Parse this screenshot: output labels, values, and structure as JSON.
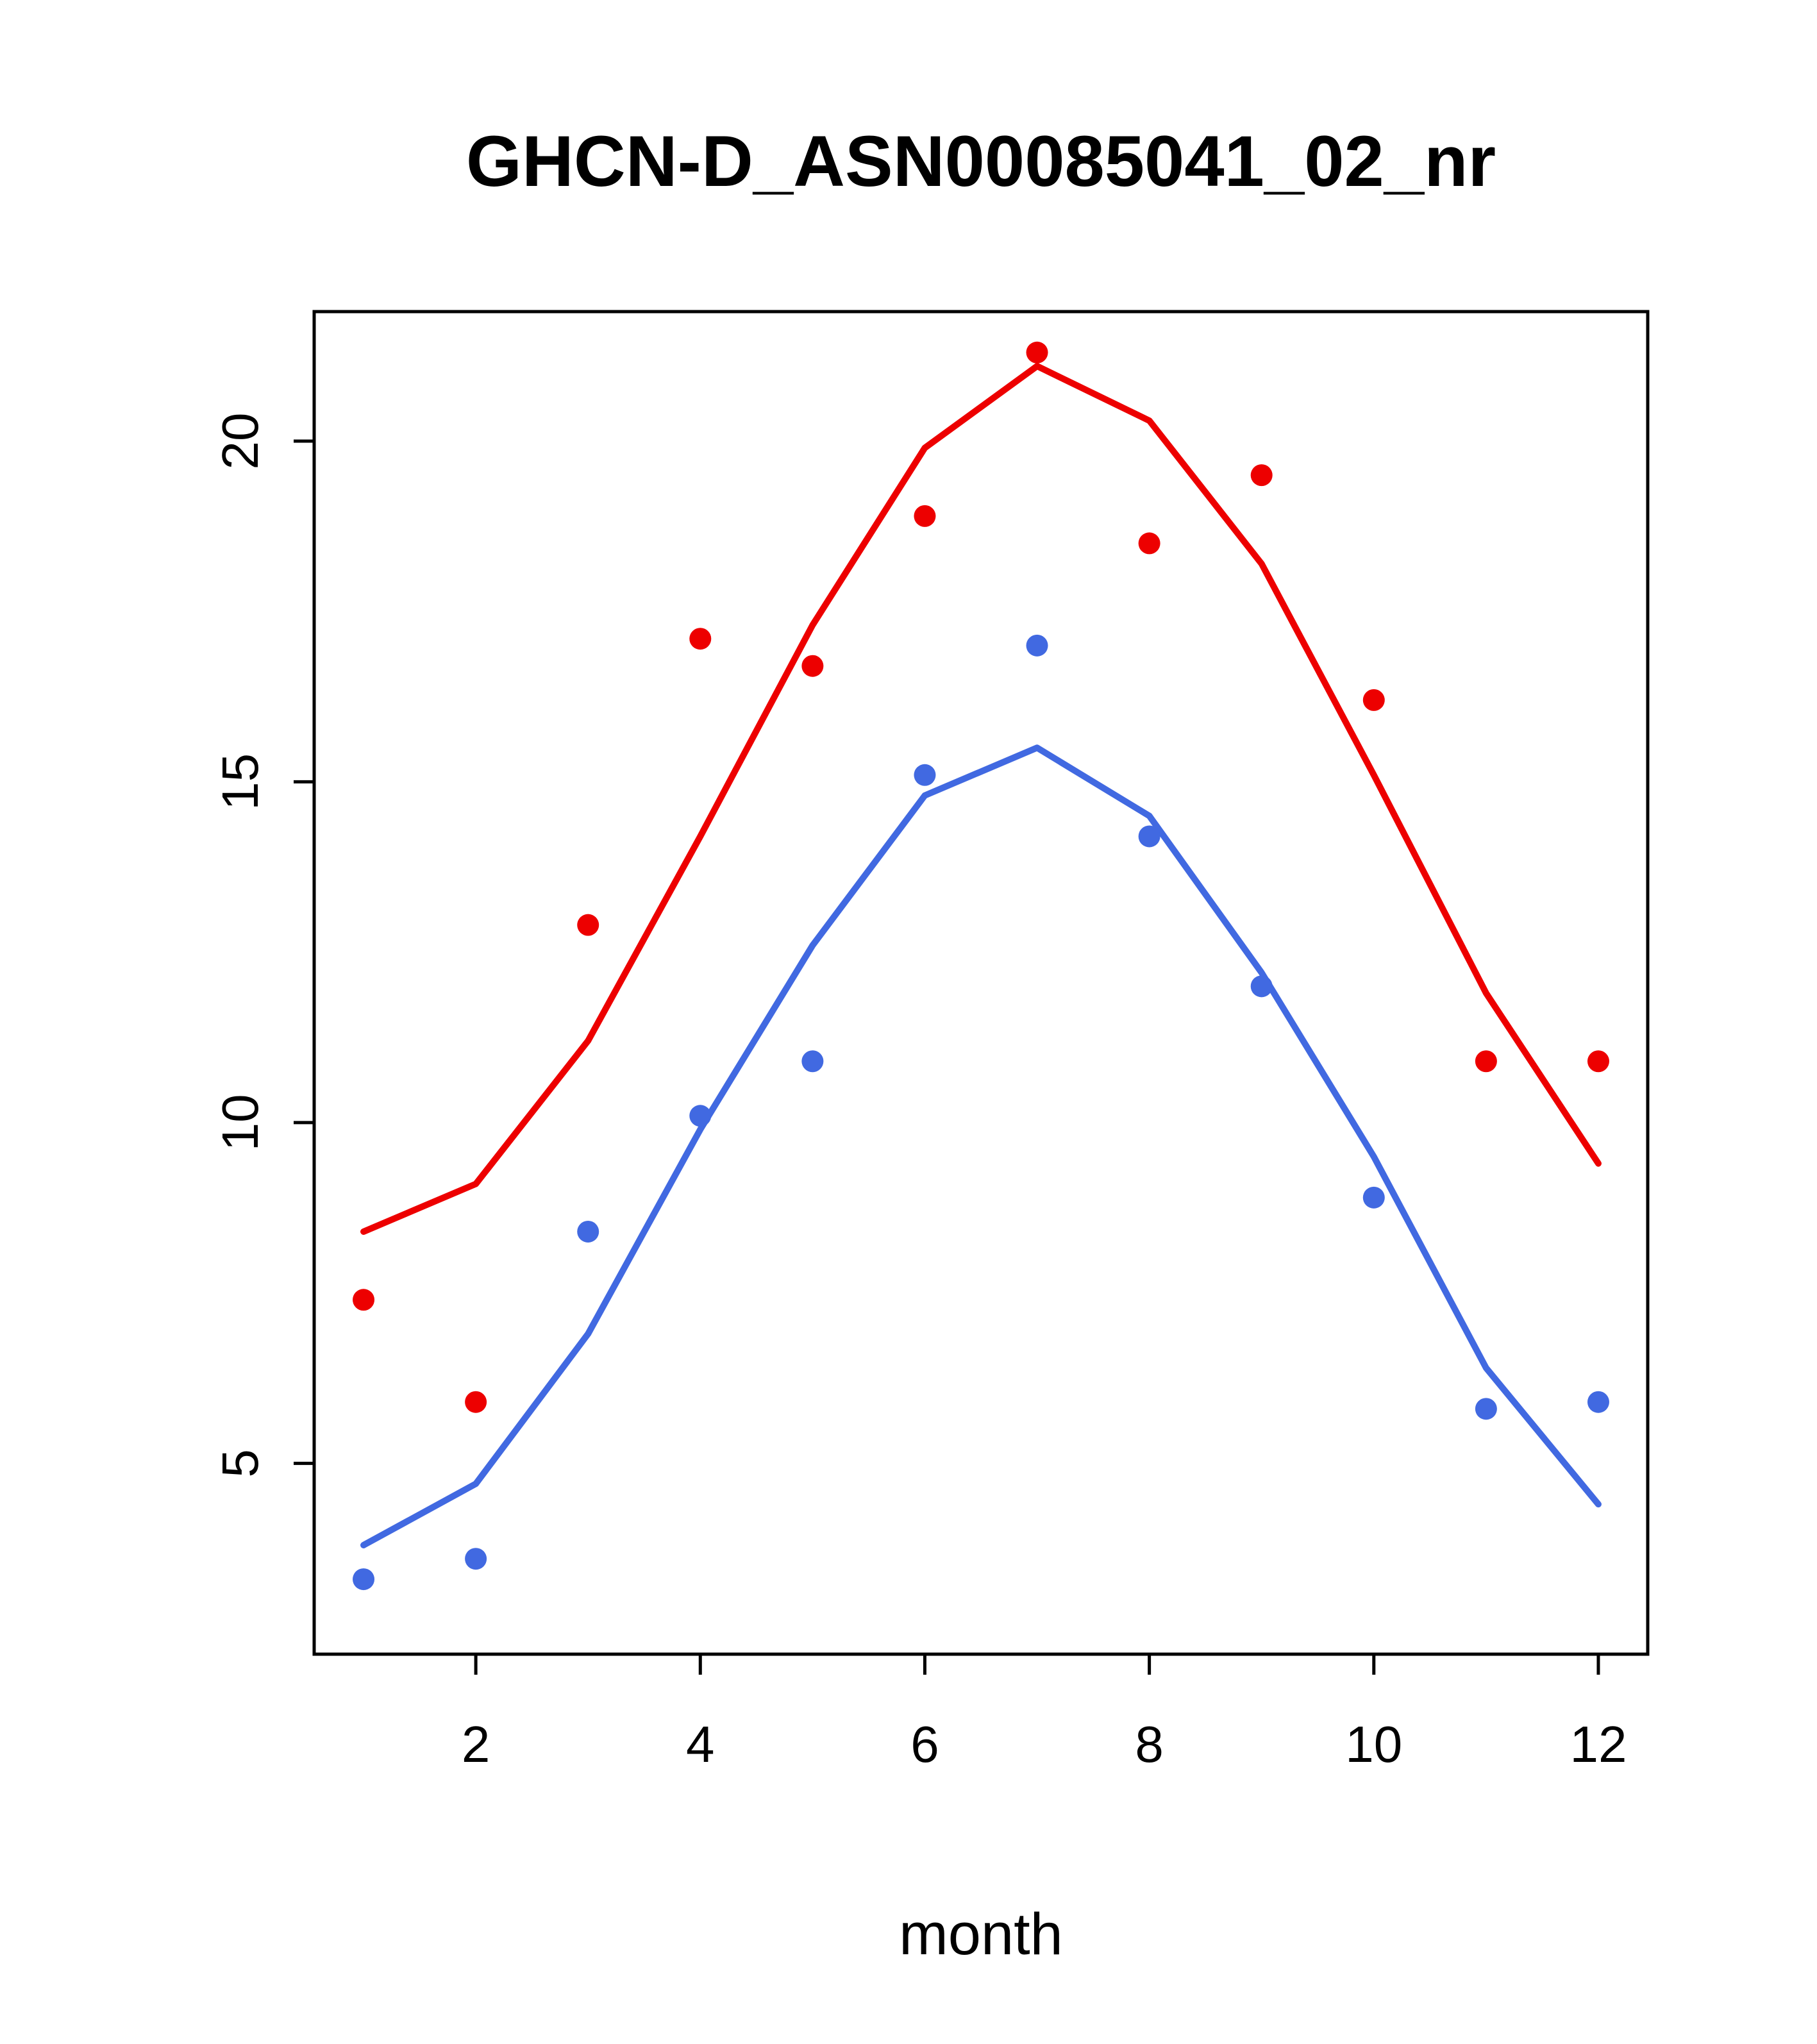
{
  "chart_data": {
    "type": "line",
    "title": "GHCN-D_ASN00085041_02_nr",
    "xlabel": "month",
    "ylabel": "",
    "x": [
      1,
      2,
      3,
      4,
      5,
      6,
      7,
      8,
      9,
      10,
      11,
      12
    ],
    "xlim": [
      0.56,
      12.44
    ],
    "ylim": [
      2.2,
      21.9
    ],
    "x_ticks": [
      2,
      4,
      6,
      8,
      10,
      12
    ],
    "y_ticks": [
      5,
      10,
      15,
      20
    ],
    "grid": false,
    "legend": null,
    "axis_color": "#000000",
    "point_radius": 17,
    "line_width": 10,
    "series": [
      {
        "name": "red-line",
        "type": "line",
        "color": "#ed0000",
        "values": [
          8.4,
          9.1,
          11.2,
          14.2,
          17.3,
          19.9,
          21.1,
          20.3,
          18.2,
          15.1,
          11.9,
          9.4
        ]
      },
      {
        "name": "blue-line",
        "type": "line",
        "color": "#4169e1",
        "values": [
          3.8,
          4.7,
          6.9,
          9.9,
          12.6,
          14.8,
          15.5,
          14.5,
          12.2,
          9.5,
          6.4,
          4.4
        ]
      },
      {
        "name": "red-points",
        "type": "scatter",
        "color": "#ed0000",
        "values": [
          7.4,
          5.9,
          12.9,
          17.1,
          16.7,
          18.9,
          21.3,
          18.5,
          19.5,
          16.2,
          10.9,
          10.9
        ]
      },
      {
        "name": "blue-points",
        "type": "scatter",
        "color": "#4169e1",
        "values": [
          3.3,
          3.6,
          8.4,
          10.1,
          10.9,
          15.1,
          17.0,
          14.2,
          12.0,
          8.9,
          5.8,
          5.9
        ]
      }
    ]
  }
}
